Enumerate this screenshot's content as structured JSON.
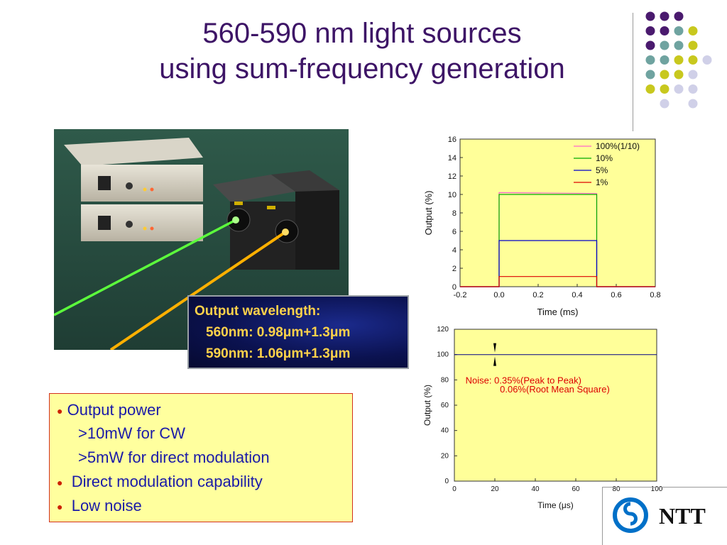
{
  "title": {
    "line1": "560-590 nm light sources",
    "line2": "using sum-frequency generation"
  },
  "wavelength_box": {
    "heading": "Output wavelength:",
    "line1": "560nm: 0.98μm+1.3μm",
    "line2": "590nm: 1.06μm+1.3μm"
  },
  "bullets": {
    "items": [
      {
        "text": "Output power",
        "sub": [
          ">10mW for CW",
          ">5mW for direct modulation"
        ]
      },
      {
        "text": "Direct modulation capability",
        "sub": []
      },
      {
        "text": "Low noise",
        "sub": []
      }
    ]
  },
  "logo": {
    "text": "NTT"
  },
  "chart_data": [
    {
      "type": "line",
      "title": "",
      "xlabel": "Time (ms)",
      "ylabel": "Output (%)",
      "xlim": [
        -0.2,
        0.8
      ],
      "ylim": [
        0,
        16
      ],
      "xticks": [
        "-0.2",
        "0.0",
        "0.2",
        "0.4",
        "0.6",
        "0.8"
      ],
      "yticks": [
        "0",
        "2",
        "4",
        "6",
        "8",
        "10",
        "12",
        "14",
        "16"
      ],
      "legend_position": "top-right",
      "background": "#ffff99",
      "series": [
        {
          "name": "100%(1/10)",
          "color": "#ff66cc",
          "x": [
            -0.2,
            0.0,
            0.0,
            0.5,
            0.5,
            0.8
          ],
          "y": [
            0,
            0,
            10.2,
            10.1,
            0,
            0
          ]
        },
        {
          "name": "10%",
          "color": "#00aa00",
          "x": [
            -0.2,
            0.0,
            0.0,
            0.5,
            0.5,
            0.8
          ],
          "y": [
            0,
            0,
            10.0,
            10.0,
            0,
            0
          ]
        },
        {
          "name": "5%",
          "color": "#0000cc",
          "x": [
            -0.2,
            0.0,
            0.0,
            0.5,
            0.5,
            0.8
          ],
          "y": [
            0,
            0,
            5.0,
            5.0,
            0,
            0
          ]
        },
        {
          "name": "1%",
          "color": "#dd0000",
          "x": [
            -0.2,
            0.0,
            0.0,
            0.5,
            0.5,
            0.8
          ],
          "y": [
            0,
            0,
            1.1,
            1.1,
            0,
            0
          ]
        }
      ]
    },
    {
      "type": "line",
      "title": "",
      "xlabel": "Time (μs)",
      "ylabel": "Output (%)",
      "xlim": [
        0,
        100
      ],
      "ylim": [
        0,
        120
      ],
      "xticks": [
        "0",
        "20",
        "40",
        "60",
        "80",
        "100"
      ],
      "yticks": [
        "0",
        "20",
        "40",
        "60",
        "80",
        "100",
        "120"
      ],
      "background": "#ffff99",
      "annotation_line1": "Noise: 0.35%(Peak to Peak)",
      "annotation_line2": "0.06%(Root Mean Square)",
      "annotation_color": "#dd0000",
      "series": [
        {
          "color": "#000088",
          "x": [
            0,
            100
          ],
          "y": [
            100,
            100
          ]
        }
      ]
    }
  ]
}
